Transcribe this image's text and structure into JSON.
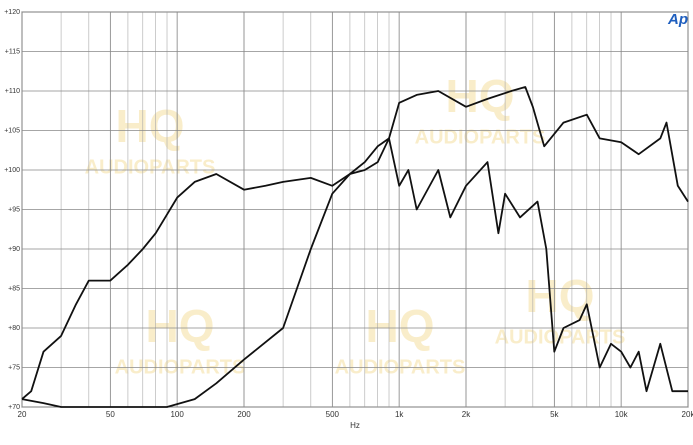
{
  "chart_data": {
    "type": "line",
    "logo": "Ap",
    "watermark": [
      "HQ",
      "AUDIOPARTS"
    ],
    "xlabel": "Hz",
    "xscale": "log",
    "grid": true,
    "xlim": [
      20,
      20000
    ],
    "ylim": [
      70,
      120
    ],
    "xticks": [
      20,
      50,
      100,
      200,
      500,
      {
        "value": 1000,
        "label": "1k"
      },
      {
        "value": 2000,
        "label": "2k"
      },
      {
        "value": 5000,
        "label": "5k"
      },
      {
        "value": 10000,
        "label": "10k"
      },
      {
        "value": 20000,
        "label": "20k"
      }
    ],
    "yticks": [
      {
        "value": 70,
        "label": "+70"
      },
      {
        "value": 75,
        "label": "+75"
      },
      {
        "value": 80,
        "label": "+80"
      },
      {
        "value": 85,
        "label": "+85"
      },
      {
        "value": 90,
        "label": "+90"
      },
      {
        "value": 95,
        "label": "+95"
      },
      {
        "value": 100,
        "label": "+100"
      },
      {
        "value": 105,
        "label": "+105"
      },
      {
        "value": 110,
        "label": "+110"
      },
      {
        "value": 115,
        "label": "+115"
      },
      {
        "value": 120,
        "label": "+120"
      }
    ],
    "series": [
      {
        "color": "#111111",
        "x": [
          20,
          22,
          25,
          30,
          35,
          40,
          50,
          60,
          70,
          80,
          100,
          120,
          150,
          200,
          250,
          300,
          400,
          500,
          600,
          700,
          800,
          900,
          1000,
          1200,
          1500,
          2000,
          2500,
          3200,
          3700,
          4000,
          4500,
          5500,
          7000,
          8000,
          10000,
          12000,
          15000,
          16000,
          18000,
          20000
        ],
        "values": [
          71,
          72,
          77,
          79,
          83,
          86,
          86,
          88,
          90,
          92,
          96.5,
          98.5,
          99.5,
          97.5,
          98,
          98.5,
          99,
          98,
          99.5,
          100,
          101,
          104,
          108.5,
          109.5,
          110,
          108,
          109,
          110,
          110.5,
          108,
          103,
          106,
          107,
          104,
          103.5,
          102,
          104,
          106,
          98,
          96
        ]
      },
      {
        "color": "#111111",
        "x": [
          20,
          25,
          30,
          40,
          60,
          90,
          120,
          150,
          200,
          300,
          400,
          500,
          600,
          700,
          800,
          900,
          1000,
          1100,
          1200,
          1500,
          1700,
          2000,
          2500,
          2800,
          3000,
          3500,
          4200,
          4600,
          5000,
          5500,
          6500,
          7000,
          8000,
          9000,
          10000,
          11000,
          12000,
          13000,
          15000,
          17000,
          20000
        ],
        "values": [
          71,
          70.5,
          70,
          70,
          70,
          70,
          71,
          73,
          76,
          80,
          90,
          97,
          99.5,
          101,
          103,
          104,
          98,
          100,
          95,
          100,
          94,
          98,
          101,
          92,
          97,
          94,
          96,
          90,
          77,
          80,
          81,
          83,
          75,
          78,
          77,
          75,
          77,
          72,
          78,
          72,
          72
        ]
      }
    ]
  }
}
